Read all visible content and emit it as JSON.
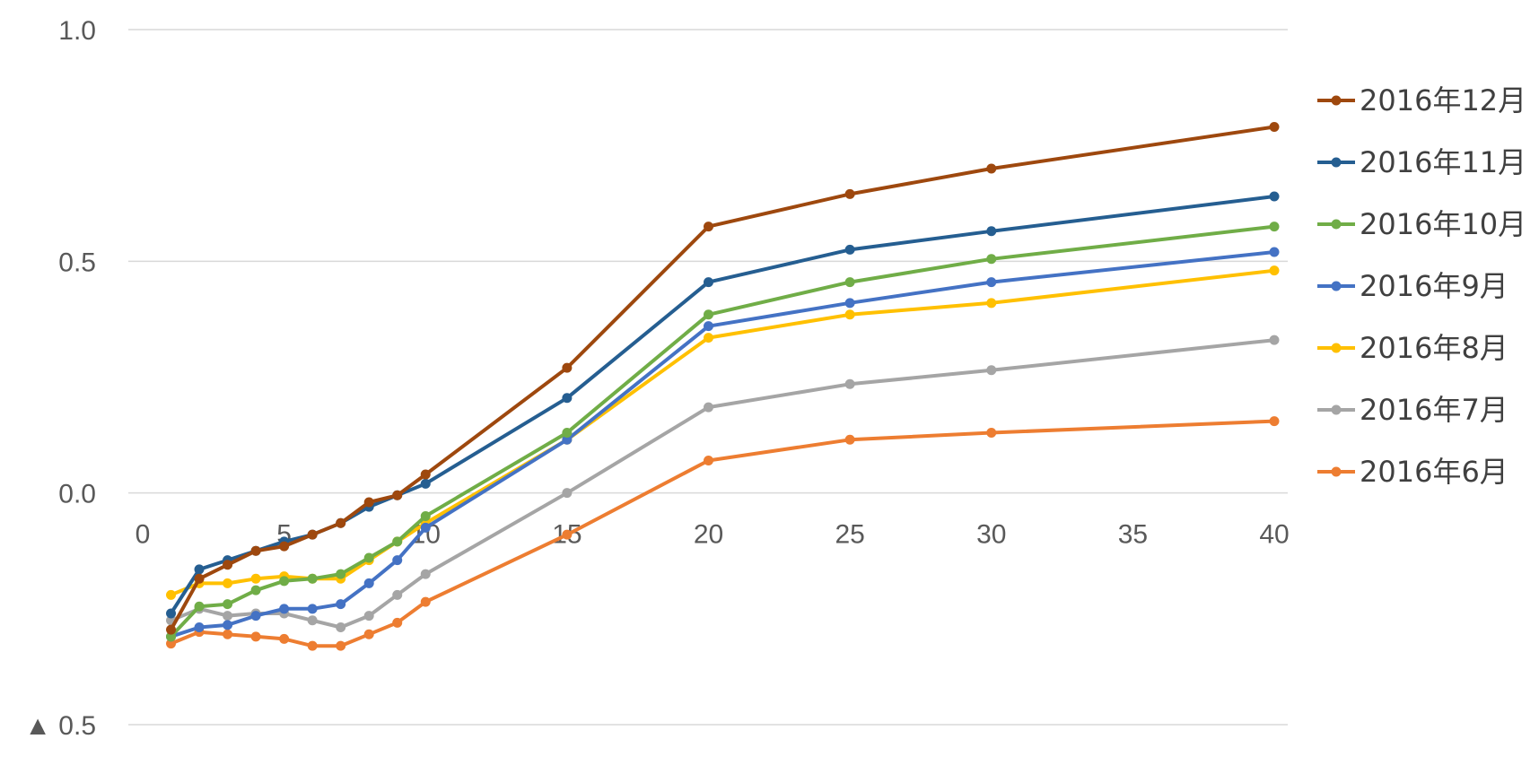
{
  "chart_data": {
    "type": "line",
    "title": "",
    "xlabel": "",
    "ylabel": "",
    "xlim": [
      0,
      40
    ],
    "ylim": [
      -0.5,
      1.0
    ],
    "x_ticks": [
      "0",
      "5",
      "10",
      "15",
      "20",
      "25",
      "30",
      "35",
      "40"
    ],
    "y_ticks": [
      {
        "value": 1.0,
        "label": "1.0"
      },
      {
        "value": 0.5,
        "label": "0.5"
      },
      {
        "value": 0.0,
        "label": "0.0"
      },
      {
        "value": -0.5,
        "label": "▲ 0.5"
      }
    ],
    "grid": true,
    "legend_position": "right",
    "x": [
      1,
      2,
      3,
      4,
      5,
      6,
      7,
      8,
      9,
      10,
      15,
      20,
      25,
      30,
      40
    ],
    "series": [
      {
        "name": "2016年12月",
        "color": "#9E480E",
        "values": [
          -0.295,
          -0.185,
          -0.155,
          -0.125,
          -0.115,
          -0.09,
          -0.065,
          -0.02,
          -0.005,
          0.04,
          0.27,
          0.575,
          0.645,
          0.7,
          0.79
        ]
      },
      {
        "name": "2016年11月",
        "color": "#255E91",
        "values": [
          -0.26,
          -0.165,
          -0.145,
          -0.125,
          -0.105,
          -0.09,
          -0.065,
          -0.03,
          -0.005,
          0.02,
          0.205,
          0.455,
          0.525,
          0.565,
          0.64
        ]
      },
      {
        "name": "2016年10月",
        "color": "#70AD47",
        "values": [
          -0.31,
          -0.245,
          -0.24,
          -0.21,
          -0.19,
          -0.185,
          -0.175,
          -0.14,
          -0.105,
          -0.05,
          0.13,
          0.385,
          0.455,
          0.505,
          0.575
        ]
      },
      {
        "name": "2016年9月",
        "color": "#4472C4",
        "values": [
          -0.31,
          -0.29,
          -0.285,
          -0.265,
          -0.25,
          -0.25,
          -0.24,
          -0.195,
          -0.145,
          -0.075,
          0.115,
          0.36,
          0.41,
          0.455,
          0.52
        ]
      },
      {
        "name": "2016年8月",
        "color": "#FFC000",
        "values": [
          -0.22,
          -0.195,
          -0.195,
          -0.185,
          -0.18,
          -0.185,
          -0.185,
          -0.145,
          -0.105,
          -0.065,
          0.115,
          0.335,
          0.385,
          0.41,
          0.48
        ]
      },
      {
        "name": "2016年7月",
        "color": "#A5A5A5",
        "values": [
          -0.275,
          -0.25,
          -0.265,
          -0.26,
          -0.26,
          -0.275,
          -0.29,
          -0.265,
          -0.22,
          -0.175,
          0.0,
          0.185,
          0.235,
          0.265,
          0.33
        ]
      },
      {
        "name": "2016年6月",
        "color": "#ED7D31",
        "values": [
          -0.325,
          -0.3,
          -0.305,
          -0.31,
          -0.315,
          -0.33,
          -0.33,
          -0.305,
          -0.28,
          -0.235,
          -0.09,
          0.07,
          0.115,
          0.13,
          0.155
        ]
      }
    ]
  }
}
